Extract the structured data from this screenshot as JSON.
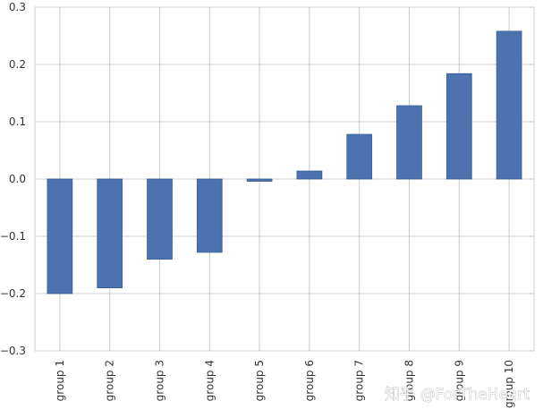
{
  "chart_data": {
    "type": "bar",
    "categories": [
      "group 1",
      "group 2",
      "group 3",
      "group 4",
      "group 5",
      "group 6",
      "group 7",
      "group 8",
      "group 9",
      "group 10"
    ],
    "values": [
      -0.2,
      -0.19,
      -0.14,
      -0.128,
      -0.004,
      0.014,
      0.078,
      0.128,
      0.184,
      0.258
    ],
    "ylim": [
      -0.3,
      0.3
    ],
    "yticks": [
      "−0.3",
      "−0.2",
      "−0.1",
      "0.0",
      "0.1",
      "0.2",
      "0.3"
    ],
    "ytick_values": [
      -0.3,
      -0.2,
      -0.1,
      0.0,
      0.1,
      0.2,
      0.3
    ],
    "grid": true,
    "bar_color": "#4c72b0",
    "grid_color": "#cccccc",
    "watermark": "知乎 @ForTheHeart"
  }
}
